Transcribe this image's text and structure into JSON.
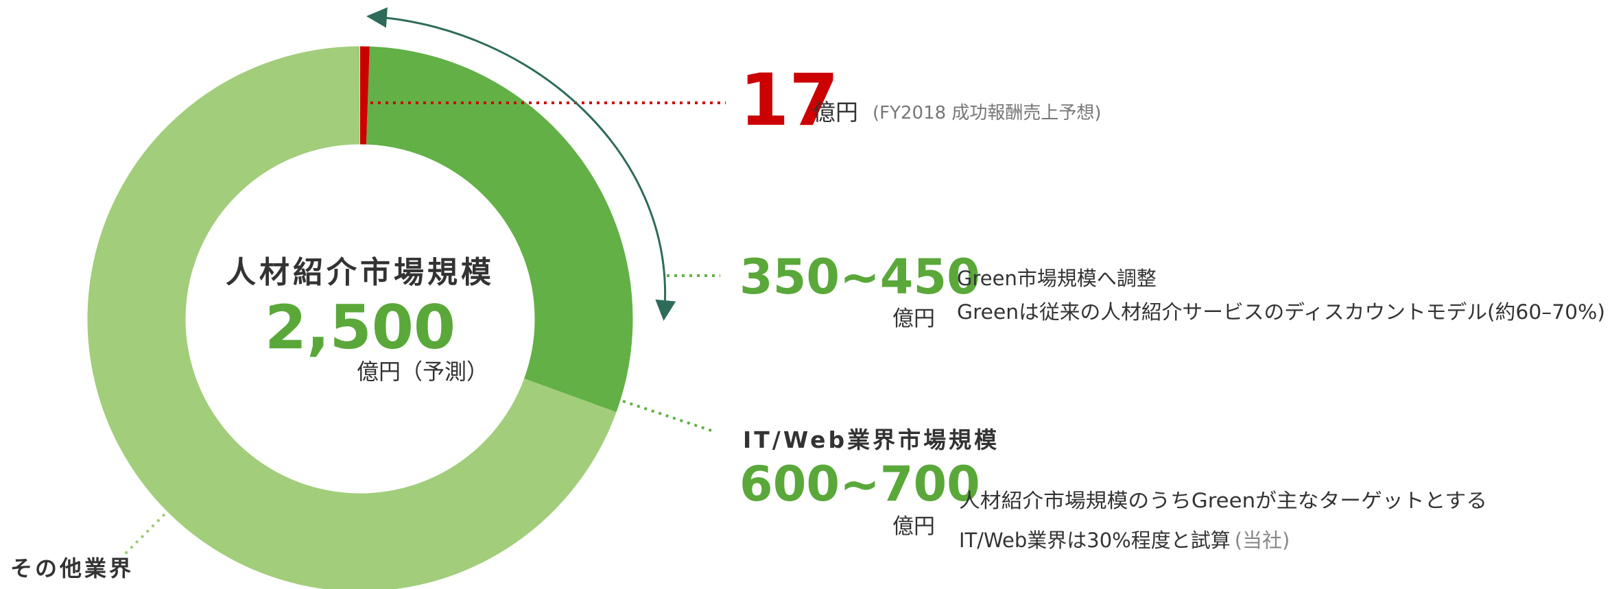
{
  "center": {
    "title": "人材紹介市場規模",
    "value": "2,500",
    "unit": "億円（予測）"
  },
  "callouts": [
    {
      "value": "17",
      "unit": "億円",
      "note": "(FY2018 成功報酬売上予想)"
    },
    {
      "value": "350~450",
      "unit": "億円",
      "lines": [
        "Green市場規模へ調整",
        "Greenは従来の人材紹介サービスのディスカウントモデル(約60–70%)"
      ]
    },
    {
      "title": "IT/Web業界市場規模",
      "value": "600~700",
      "unit": "億円",
      "lines": [
        "人材紹介市場規模のうちGreenが主なターゲットとする",
        "IT/Web業界は30%程度と試算"
      ],
      "source": "(当社)"
    }
  ],
  "other": "その他業界"
}
